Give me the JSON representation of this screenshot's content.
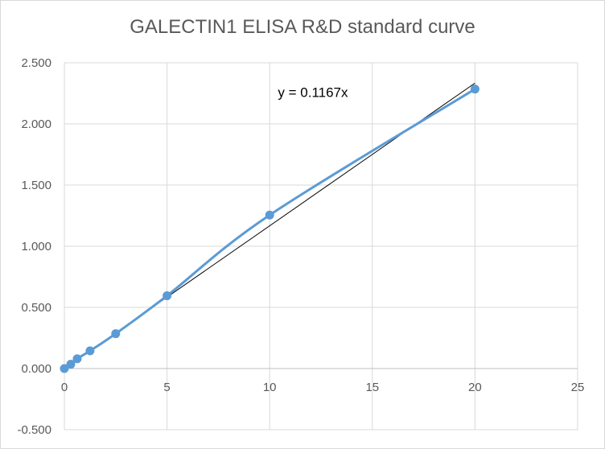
{
  "chart_data": {
    "type": "scatter",
    "title": "GALECTIN1 ELISA R&D standard curve",
    "xlabel": "",
    "ylabel": "",
    "xlim": [
      0,
      25
    ],
    "ylim": [
      -0.5,
      2.5
    ],
    "x_ticks": [
      0,
      5,
      10,
      15,
      20,
      25
    ],
    "x_tick_labels": [
      "0",
      "5",
      "10",
      "15",
      "20",
      "25"
    ],
    "y_ticks": [
      -0.5,
      0,
      0.5,
      1,
      1.5,
      2,
      2.5
    ],
    "y_tick_labels": [
      "-0.500",
      "0.000",
      "0.500",
      "1.000",
      "1.500",
      "2.000",
      "2.500"
    ],
    "grid": true,
    "series": [
      {
        "x": [
          0,
          0.3125,
          0.625,
          1.25,
          2.5,
          5,
          10,
          20
        ],
        "y": [
          0.0,
          0.035,
          0.08,
          0.145,
          0.285,
          0.595,
          1.255,
          2.285
        ],
        "color": "#5b9bd5",
        "smoothed_line": true
      }
    ],
    "trendline": {
      "type": "linear-through-origin",
      "slope": 0.1167,
      "x_range": [
        0,
        20
      ],
      "color": "#000000",
      "equation_label": "y = 0.1167x"
    }
  }
}
